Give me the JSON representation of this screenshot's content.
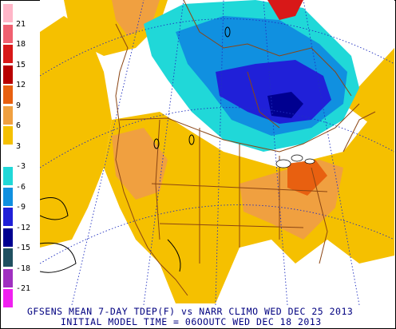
{
  "caption": {
    "line1": "GFSENS MEAN 7-DAY TDEP(F) vs NARR CLIMO WED DEC 25 2013",
    "line2": "INITIAL MODEL TIME = 06OOUTC WED DEC 18 2013"
  },
  "legend": {
    "ticks": [
      "21",
      "18",
      "15",
      "12",
      "9",
      "6",
      "3",
      "-3",
      "-6",
      "-9",
      "-12",
      "-15",
      "-18",
      "-21"
    ],
    "colors": [
      "#ffb6c8",
      "#f06070",
      "#d81818",
      "#b80000",
      "#e86010",
      "#f0a040",
      "#f5c000",
      "#ffffff",
      "#20d8d8",
      "#1090e0",
      "#2020d8",
      "#000090",
      "#205060",
      "#a030c0",
      "#f020f0"
    ]
  },
  "map_colors": {
    "warm_light": "#f5c000",
    "warm_mid": "#f0a040",
    "warm_strong": "#e86010",
    "cold_light": "#20d8d8",
    "cold_mid": "#1090e0",
    "cold_strong": "#2020d8",
    "cold_deep": "#000090",
    "hot_spot": "#d81818",
    "borders": "#8b4513",
    "grid": "#2030c0"
  }
}
